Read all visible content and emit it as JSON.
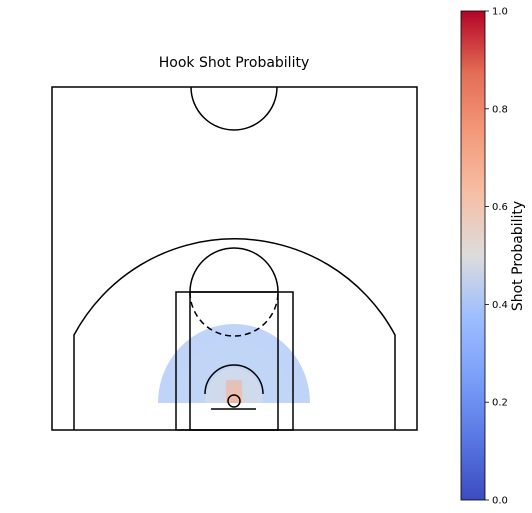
{
  "chart_data": {
    "type": "heatmap",
    "title": "Hook Shot Probability",
    "colorbar": {
      "label": "Shot Probability",
      "range": [
        0.0,
        1.0
      ],
      "ticks": [
        0.0,
        0.2,
        0.4,
        0.6,
        0.8,
        1.0
      ],
      "tick_labels": [
        "0.0",
        "0.2",
        "0.4",
        "0.6",
        "0.8",
        "1.0"
      ],
      "colormap": "coolwarm"
    },
    "court": "half-court",
    "shot_zone": {
      "shape": "semicircle around basket",
      "probability_min": 0.34,
      "probability_max": 0.62,
      "description": "higher probability near the rim"
    },
    "grid": false
  }
}
